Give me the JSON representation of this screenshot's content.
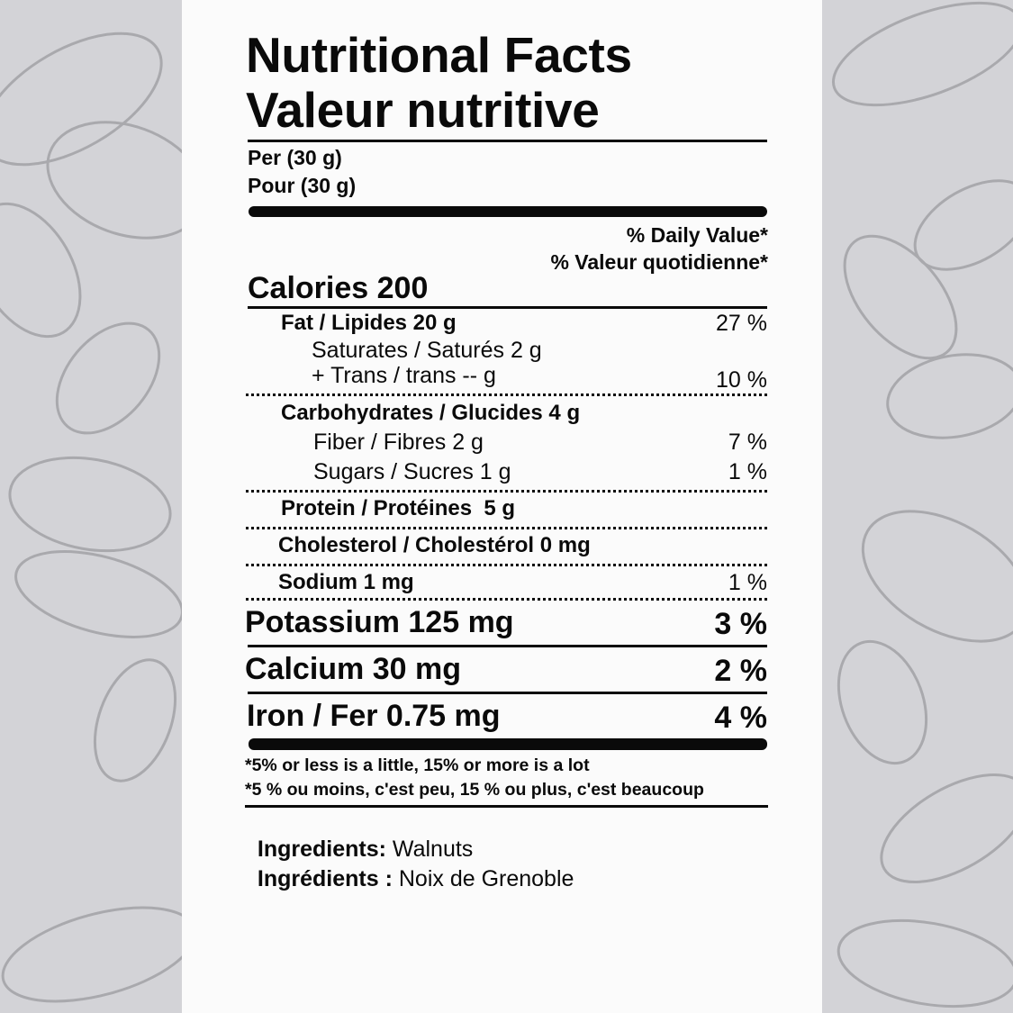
{
  "colors": {
    "background": "#d3d3d7",
    "panel": "#fbfbfb",
    "text": "#0a0a0a",
    "illustration": "#a9a9ad"
  },
  "title": {
    "line1": "Nutritional Facts",
    "line2": "Valeur nutritive"
  },
  "serving": {
    "en": "Per (30 g)",
    "fr": "Pour (30 g)"
  },
  "daily_value": {
    "en": "% Daily Value*",
    "fr": "% Valeur quotidienne*"
  },
  "calories": "Calories 200",
  "nutrients": [
    {
      "label": "Fat / Lipides 20 g",
      "dv": "27 %"
    },
    {
      "label": "Saturates / Saturés 2 g",
      "dv": ""
    },
    {
      "label": "+ Trans / trans -- g",
      "dv": "10 %"
    },
    {
      "label": "Carbohydrates / Glucides 4 g",
      "dv": ""
    },
    {
      "label": "Fiber / Fibres 2 g",
      "dv": "7 %"
    },
    {
      "label": "Sugars / Sucres 1 g",
      "dv": "1 %"
    },
    {
      "label": "Protein / Protéines  5 g",
      "dv": ""
    },
    {
      "label": "Cholesterol / Cholestérol 0 mg",
      "dv": ""
    },
    {
      "label": "Sodium 1 mg",
      "dv": "1 %"
    }
  ],
  "minerals": [
    {
      "label": "Potassium 125 mg",
      "dv": "3 %"
    },
    {
      "label": "Calcium 30 mg",
      "dv": "2 %"
    },
    {
      "label": "Iron / Fer 0.75 mg",
      "dv": "4 %"
    }
  ],
  "footnote": {
    "en": "*5% or less is a little, 15% or more is a lot",
    "fr": "*5 % ou moins, c'est peu, 15 % ou plus, c'est beaucoup"
  },
  "ingredients": {
    "en_label": "Ingredients:",
    "en_value": " Walnuts",
    "fr_label": "Ingrédients :",
    "fr_value": " Noix de Grenoble"
  }
}
